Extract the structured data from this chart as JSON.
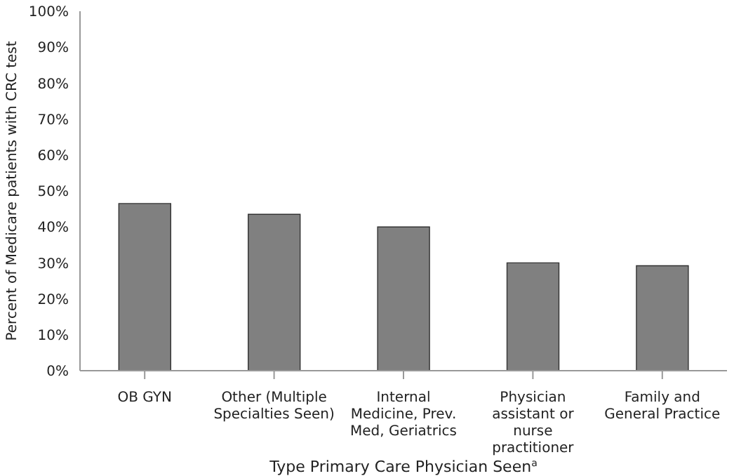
{
  "chart_data": {
    "type": "bar",
    "categories": [
      "OB GYN",
      "Other (Multiple Specialties Seen)",
      "Internal Medicine, Prev. Med, Geriatrics",
      "Physician assistant or nurse practitioner",
      "Family and General Practice"
    ],
    "values": [
      46.5,
      43.5,
      40,
      30,
      29.2
    ],
    "color": "#808080",
    "xlabel": "Type Primary Care Physician Seen$^{a}$",
    "ylabel": "Percent of Medicare patients with CRC test",
    "ylim": [
      0,
      100
    ],
    "yticks": [
      {
        "value": 0,
        "label": "0%"
      },
      {
        "value": 10,
        "label": "10%"
      },
      {
        "value": 20,
        "label": "20%"
      },
      {
        "value": 30,
        "label": "30%"
      },
      {
        "value": 40,
        "label": "40%"
      },
      {
        "value": 50,
        "label": "50%"
      },
      {
        "value": 60,
        "label": "60%"
      },
      {
        "value": 70,
        "label": "70%"
      },
      {
        "value": 80,
        "label": "80%"
      },
      {
        "value": 90,
        "label": "90%"
      },
      {
        "value": 100,
        "label": "100%"
      }
    ],
    "grid": false
  }
}
